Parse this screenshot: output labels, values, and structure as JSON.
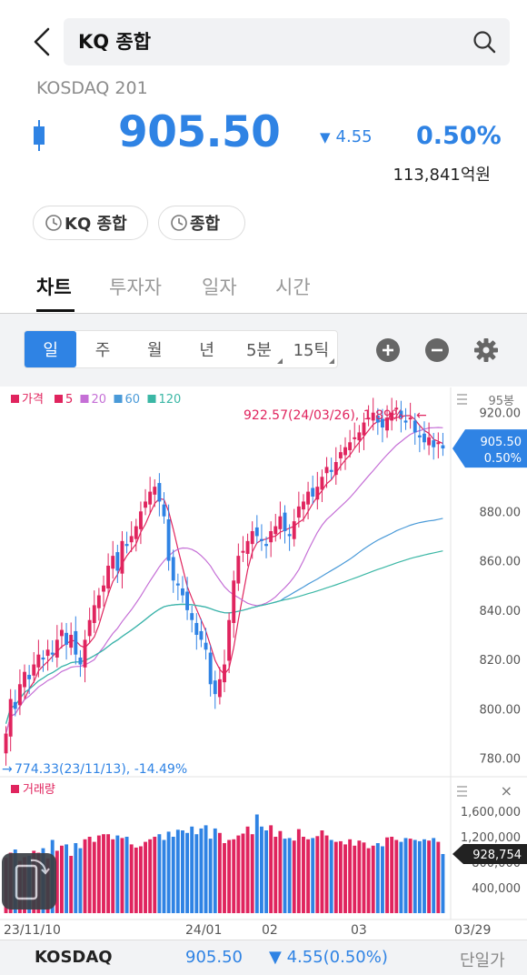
{
  "header": {
    "search_value": "KQ 종합"
  },
  "quote": {
    "subtitle": "KOSDAQ 201",
    "price": "905.50",
    "change": "4.55",
    "change_rate": "0.50%",
    "volume": "113,841억원",
    "up_color": "#e0245e",
    "down_color": "#2f83e4"
  },
  "chips": [
    "KQ 종합",
    "종합"
  ],
  "tabs": [
    "차트",
    "투자자",
    "일자",
    "시간"
  ],
  "periods": [
    "일",
    "주",
    "월",
    "년",
    "5분",
    "15틱"
  ],
  "tools": [
    "plus-icon",
    "minus-icon",
    "gear-icon"
  ],
  "chart_data": {
    "type": "candlestick",
    "legend": [
      {
        "label": "가격",
        "color": "#e0245e"
      },
      {
        "label": "5",
        "color": "#e0245e"
      },
      {
        "label": "20",
        "color": "#c56fd6"
      },
      {
        "label": "60",
        "color": "#4a9ad8"
      },
      {
        "label": "120",
        "color": "#3bb7a5"
      }
    ],
    "count_label": "95봉",
    "y_ticks": [
      "920.00",
      "880.00",
      "860.00",
      "840.00",
      "820.00",
      "800.00",
      "780.00"
    ],
    "y_tick_values": [
      920,
      880,
      860,
      840,
      820,
      800,
      780
    ],
    "ylim": [
      774,
      928
    ],
    "current_price_label": "905.50",
    "current_rate_label": "0.50%",
    "current_price": 905.5,
    "high_annotation": "922.57(24/03/26), 1.89%",
    "high_value": 922.57,
    "low_annotation": "774.33(23/11/13), -14.49%",
    "low_value": 774.33,
    "x_labels": [
      "23/11/10",
      "24/01",
      "02",
      "03",
      "03/29"
    ],
    "closes": [
      790,
      804,
      800,
      810,
      815,
      812,
      818,
      822,
      820,
      824,
      822,
      828,
      832,
      826,
      830,
      822,
      818,
      828,
      836,
      842,
      846,
      850,
      858,
      862,
      856,
      868,
      866,
      870,
      874,
      880,
      884,
      888,
      890,
      884,
      878,
      860,
      852,
      850,
      846,
      840,
      836,
      830,
      828,
      824,
      810,
      806,
      812,
      818,
      836,
      852,
      862,
      864,
      868,
      872,
      870,
      868,
      866,
      872,
      874,
      878,
      872,
      870,
      876,
      882,
      884,
      888,
      886,
      890,
      894,
      898,
      896,
      900,
      904,
      906,
      908,
      910,
      912,
      916,
      918,
      920,
      916,
      914,
      918,
      920,
      922,
      918,
      916,
      918,
      912,
      910,
      908,
      910,
      906,
      908,
      905.5
    ],
    "volume": {
      "label": "거래량",
      "y_ticks": [
        "1,600,000",
        "1,200,000",
        "800,000",
        "400,000"
      ],
      "y_tick_values": [
        1600000,
        1200000,
        800000,
        400000
      ],
      "ylim": [
        0,
        1800000
      ],
      "current_label": "928,754",
      "current_value": 928754,
      "values": [
        870000,
        950000,
        1000000,
        820000,
        880000,
        900000,
        980000,
        950000,
        1020000,
        860000,
        1150000,
        980000,
        1060000,
        1080000,
        900000,
        1100000,
        1020000,
        1160000,
        1200000,
        1120000,
        1220000,
        1240000,
        1240000,
        1160000,
        1220000,
        1180000,
        1200000,
        1080000,
        1030000,
        1050000,
        1120000,
        1160000,
        1200000,
        1240000,
        1150000,
        1280000,
        1200000,
        1310000,
        1300000,
        1260000,
        1360000,
        1240000,
        1330000,
        1380000,
        1170000,
        1330000,
        1260000,
        1100000,
        1150000,
        1160000,
        1220000,
        1250000,
        1360000,
        1240000,
        1550000,
        1360000,
        1300000,
        1380000,
        1200000,
        1290000,
        1170000,
        1180000,
        1140000,
        1320000,
        1200000,
        1160000,
        1180000,
        1210000,
        1300000,
        1220000,
        1150000,
        1120000,
        1130000,
        1080000,
        1160000,
        1060000,
        1140000,
        1110000,
        1020000,
        1060000,
        1100000,
        1050000,
        1190000,
        1200000,
        1150000,
        1120000,
        1180000,
        1170000,
        1150000,
        1130000,
        1160000,
        1140000,
        1180000,
        1120000,
        928754
      ]
    }
  },
  "bottom_bar": {
    "name": "KOSDAQ",
    "price": "905.50",
    "change": "▼ 4.55",
    "rate": "(0.50%)",
    "button": "단일가"
  }
}
